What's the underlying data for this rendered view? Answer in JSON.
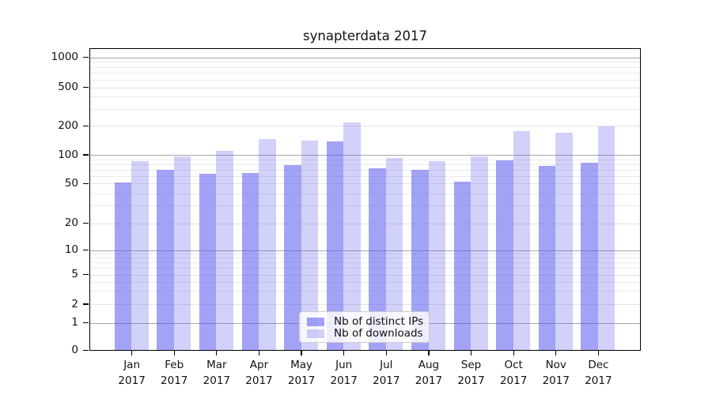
{
  "title": "synapterdata 2017",
  "colors": {
    "bar_distinct_ips": "rgba(85,85,238,0.55)",
    "bar_downloads": "rgba(85,85,238,0.27)",
    "grid_emphasis": "#a6a6a6",
    "grid_minor": "#ebebeb",
    "axis": "#000000",
    "background": "#ffffff"
  },
  "chart_data": {
    "type": "bar",
    "title": "synapterdata 2017",
    "categories": [
      "Jan 2017",
      "Feb 2017",
      "Mar 2017",
      "Apr 2017",
      "May 2017",
      "Jun 2017",
      "Jul 2017",
      "Aug 2017",
      "Sep 2017",
      "Oct 2017",
      "Nov 2017",
      "Dec 2017"
    ],
    "series": [
      {
        "name": "Nb of distinct IPs",
        "color": "rgba(85,85,238,0.55)",
        "values": [
          51,
          70,
          63,
          65,
          78,
          138,
          72,
          70,
          52,
          88,
          77,
          83
        ]
      },
      {
        "name": "Nb of downloads",
        "color": "rgba(85,85,238,0.27)",
        "values": [
          86,
          97,
          109,
          146,
          141,
          215,
          93,
          86,
          97,
          177,
          170,
          196
        ]
      }
    ],
    "xlabel": "",
    "ylabel": "",
    "yscale": "symlog",
    "ylim": [
      0,
      1200
    ],
    "yticks": [
      0,
      1,
      2,
      5,
      10,
      20,
      50,
      100,
      200,
      500,
      1000
    ],
    "ytick_emphasis": [
      1,
      10,
      100,
      1000
    ],
    "grid_minor_values": [
      3,
      4,
      6,
      7,
      8,
      9,
      30,
      40,
      60,
      70,
      80,
      90,
      300,
      400,
      600,
      700,
      800,
      900
    ],
    "grid": true,
    "legend_position": "lower center"
  }
}
